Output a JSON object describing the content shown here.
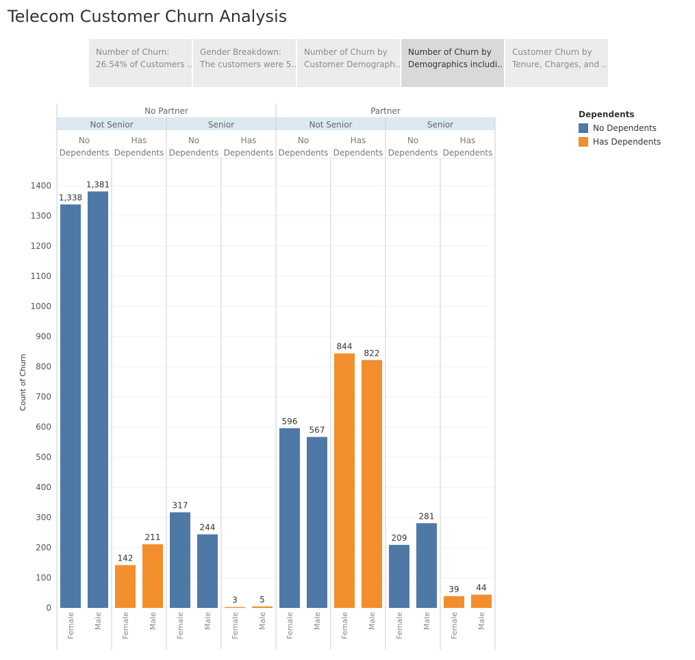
{
  "page": {
    "title": "Telecom Customer Churn Analysis"
  },
  "tabs": [
    {
      "line1": "Number of Churn:",
      "line2": "26.54% of Customers ..",
      "active": false
    },
    {
      "line1": "Gender Breakdown:",
      "line2": "The customers were 5..",
      "active": false
    },
    {
      "line1": "Number of Churn by",
      "line2": "Customer Demograph..",
      "active": false
    },
    {
      "line1": "Number of Churn by",
      "line2": "Demographics includi..",
      "active": true
    },
    {
      "line1": "Customer Churn by",
      "line2": "Tenure, Charges, and ..",
      "active": false
    }
  ],
  "legend": {
    "title": "Dependents",
    "items": [
      {
        "label": "No Dependents",
        "color": "#4e79a7"
      },
      {
        "label": "Has Dependents",
        "color": "#f28e2b"
      }
    ]
  },
  "chart_data": {
    "type": "bar",
    "ylabel": "Count of Churn",
    "ylim": [
      0,
      1450
    ],
    "yticks": [
      0,
      100,
      200,
      300,
      400,
      500,
      600,
      700,
      800,
      900,
      1000,
      1100,
      1200,
      1300,
      1400
    ],
    "grid": true,
    "legend_position": "top-right",
    "partner_headers": [
      "No Partner",
      "Partner"
    ],
    "senior_headers": [
      "Not Senior",
      "Senior",
      "Not Senior",
      "Senior"
    ],
    "dependents_headers": [
      [
        "No",
        "Dependents"
      ],
      [
        "Has",
        "Dependents"
      ],
      [
        "No",
        "Dependents"
      ],
      [
        "Has",
        "Dependents"
      ],
      [
        "No",
        "Dependents"
      ],
      [
        "Has",
        "Dependents"
      ],
      [
        "No",
        "Dependents"
      ],
      [
        "Has",
        "Dependents"
      ]
    ],
    "categories": [
      "Female",
      "Male"
    ],
    "groups": [
      {
        "partner": "No Partner",
        "senior": "Not Senior",
        "dependents": "No Dependents",
        "values": [
          1338,
          1381
        ],
        "labels": [
          "1,338",
          "1,381"
        ]
      },
      {
        "partner": "No Partner",
        "senior": "Not Senior",
        "dependents": "Has Dependents",
        "values": [
          142,
          211
        ],
        "labels": [
          "142",
          "211"
        ]
      },
      {
        "partner": "No Partner",
        "senior": "Senior",
        "dependents": "No Dependents",
        "values": [
          317,
          244
        ],
        "labels": [
          "317",
          "244"
        ]
      },
      {
        "partner": "No Partner",
        "senior": "Senior",
        "dependents": "Has Dependents",
        "values": [
          3,
          5
        ],
        "labels": [
          "3",
          "5"
        ]
      },
      {
        "partner": "Partner",
        "senior": "Not Senior",
        "dependents": "No Dependents",
        "values": [
          596,
          567
        ],
        "labels": [
          "596",
          "567"
        ]
      },
      {
        "partner": "Partner",
        "senior": "Not Senior",
        "dependents": "Has Dependents",
        "values": [
          844,
          822
        ],
        "labels": [
          "844",
          "822"
        ]
      },
      {
        "partner": "Partner",
        "senior": "Senior",
        "dependents": "No Dependents",
        "values": [
          209,
          281
        ],
        "labels": [
          "209",
          "281"
        ]
      },
      {
        "partner": "Partner",
        "senior": "Senior",
        "dependents": "Has Dependents",
        "values": [
          39,
          44
        ],
        "labels": [
          "39",
          "44"
        ]
      }
    ]
  }
}
